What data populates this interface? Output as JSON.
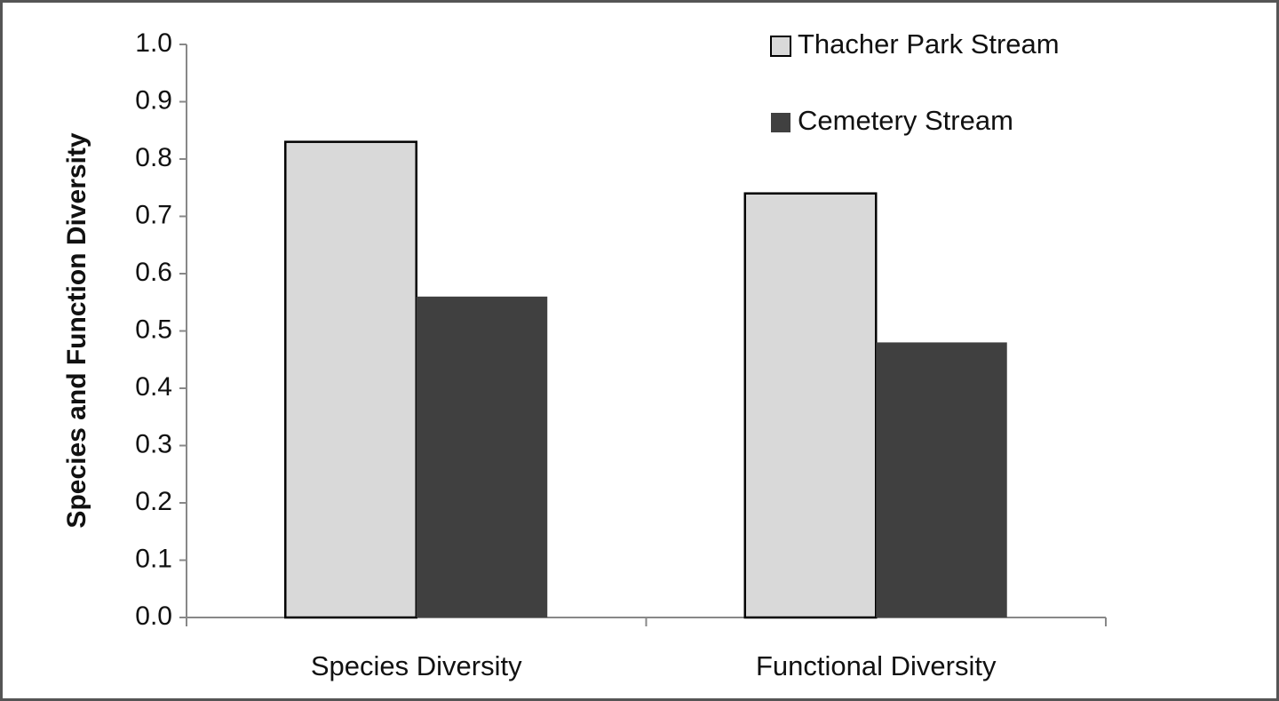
{
  "chart_data": {
    "type": "bar",
    "y_axis_label": "Species and Function Diversity",
    "categories": [
      "Species Diversity",
      "Functional Diversity"
    ],
    "series": [
      {
        "name": "Thacher Park Stream",
        "color": "#d9d9d9",
        "values": [
          0.83,
          0.74
        ]
      },
      {
        "name": "Cemetery Stream",
        "color": "#404040",
        "values": [
          0.56,
          0.48
        ]
      }
    ],
    "ylim": [
      0,
      1
    ],
    "yticks": [
      {
        "value": 0,
        "label": "0.0"
      },
      0.1,
      0.2,
      0.3,
      0.4,
      0.5,
      0.6,
      0.7,
      0.8,
      0.9,
      {
        "value": 1,
        "label": "1.0"
      }
    ],
    "grid": false,
    "legend": "top-right"
  }
}
